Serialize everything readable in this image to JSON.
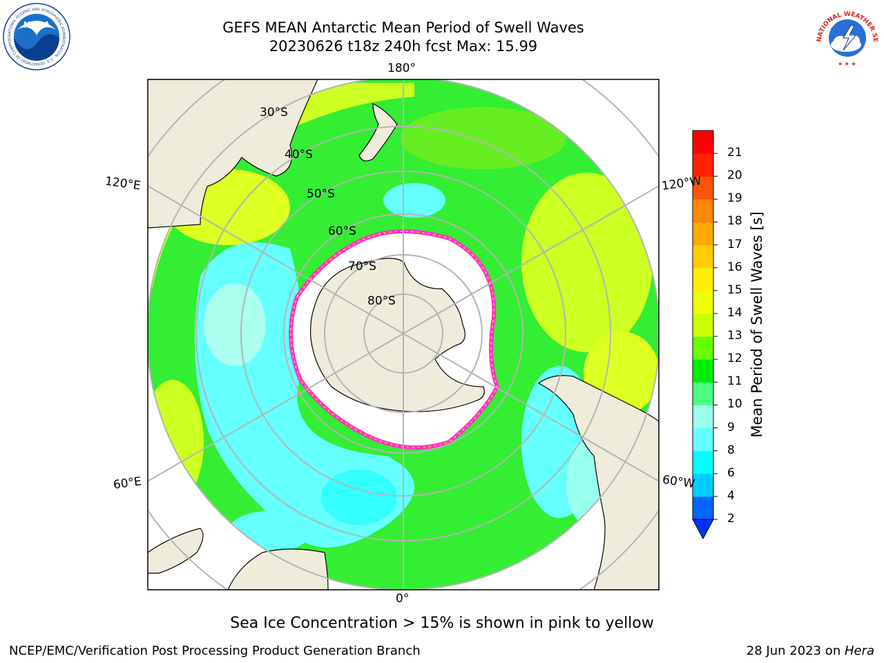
{
  "header": {
    "title_line1": "GEFS MEAN Antarctic Mean Period of Swell Waves",
    "title_line2": "20230626 t18z 240h fcst   Max: 15.99"
  },
  "logos": {
    "noaa_text": "NOAA",
    "noaa_ring": "NATIONAL OCEANIC AND ATMOSPHERIC ADMINISTRATION · U.S. DEPARTMENT OF COMMERCE",
    "nws_ring": "NATIONAL WEATHER SERVICE"
  },
  "map": {
    "projection": "south-polar-stereographic",
    "lon_labels": {
      "top": "180°",
      "upper_left": "120°E",
      "upper_right": "120°W",
      "lower_left": "60°E",
      "lower_right": "60°W",
      "bottom": "0°"
    },
    "lat_labels": [
      "30°S",
      "40°S",
      "50°S",
      "60°S",
      "70°S",
      "80°S"
    ],
    "colors": {
      "land": "#efecdc",
      "ice_edge": "#ff33cc",
      "gridline": "#b4b4b4"
    }
  },
  "colorbar": {
    "label": "Mean Period of Swell Waves [s]",
    "ticks": [
      "2",
      "4",
      "6",
      "8",
      "9",
      "10",
      "11",
      "12",
      "13",
      "14",
      "15",
      "16",
      "17",
      "18",
      "19",
      "20",
      "21"
    ],
    "colors": [
      "#0066ff",
      "#00ccff",
      "#00ffff",
      "#66ffff",
      "#99ffee",
      "#4cff80",
      "#00ee00",
      "#66ff00",
      "#ccff00",
      "#eeff00",
      "#ffee00",
      "#ffcc00",
      "#ffaa00",
      "#ff8800",
      "#ff5500",
      "#ff2200",
      "#ff0000"
    ],
    "extend_color": "#0033ff"
  },
  "caption": "Sea Ice Concentration > 15% is shown in pink to yellow",
  "footer": {
    "left": "NCEP/EMC/Verification Post Processing Product Generation Branch",
    "date": "28 Jun 2023 on ",
    "host": "Hera"
  }
}
